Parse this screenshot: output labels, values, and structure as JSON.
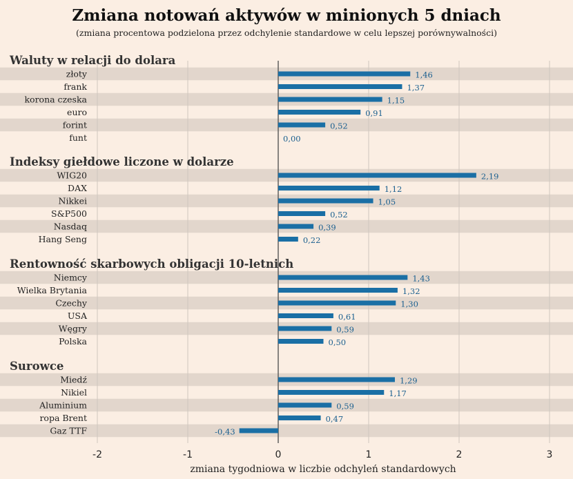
{
  "chart_data": {
    "type": "bar",
    "orientation": "horizontal",
    "title": "Zmiana notowań aktywów w minionych 5 dniach",
    "subtitle": "(zmiana procentowa podzielona przez odchylenie standardowe w celu lepszej porównywalności)",
    "xlabel": "zmiana tygodniowa w liczbie odchyleń standardowych",
    "xlim": [
      -2,
      3
    ],
    "xticks": [
      "-2",
      "-1",
      "0",
      "1",
      "2",
      "3"
    ],
    "grid": "vertical",
    "colors": {
      "bar": "#1a6fa5",
      "band": "#e2d6cc",
      "background": "#fbeee3",
      "value_text": "#1a5f8f"
    },
    "groups": [
      {
        "title": "Waluty w relacji do dolara",
        "items": [
          {
            "label": "złoty",
            "value": 1.46,
            "text": "1,46"
          },
          {
            "label": "frank",
            "value": 1.37,
            "text": "1,37"
          },
          {
            "label": "korona czeska",
            "value": 1.15,
            "text": "1,15"
          },
          {
            "label": "euro",
            "value": 0.91,
            "text": "0,91"
          },
          {
            "label": "forint",
            "value": 0.52,
            "text": "0,52"
          },
          {
            "label": "funt",
            "value": 0.0,
            "text": "0,00"
          }
        ]
      },
      {
        "title": "Indeksy giełdowe liczone w dolarze",
        "items": [
          {
            "label": "WIG20",
            "value": 2.19,
            "text": "2,19"
          },
          {
            "label": "DAX",
            "value": 1.12,
            "text": "1,12"
          },
          {
            "label": "Nikkei",
            "value": 1.05,
            "text": "1,05"
          },
          {
            "label": "S&P500",
            "value": 0.52,
            "text": "0,52"
          },
          {
            "label": "Nasdaq",
            "value": 0.39,
            "text": "0,39"
          },
          {
            "label": "Hang Seng",
            "value": 0.22,
            "text": "0,22"
          }
        ]
      },
      {
        "title": "Rentowność skarbowych obligacji 10-letnich",
        "items": [
          {
            "label": "Niemcy",
            "value": 1.43,
            "text": "1,43"
          },
          {
            "label": "Wielka Brytania",
            "value": 1.32,
            "text": "1,32"
          },
          {
            "label": "Czechy",
            "value": 1.3,
            "text": "1,30"
          },
          {
            "label": "USA",
            "value": 0.61,
            "text": "0,61"
          },
          {
            "label": "Węgry",
            "value": 0.59,
            "text": "0,59"
          },
          {
            "label": "Polska",
            "value": 0.5,
            "text": "0,50"
          }
        ]
      },
      {
        "title": "Surowce",
        "items": [
          {
            "label": "Miedź",
            "value": 1.29,
            "text": "1,29"
          },
          {
            "label": "Nikiel",
            "value": 1.17,
            "text": "1,17"
          },
          {
            "label": "Aluminium",
            "value": 0.59,
            "text": "0,59"
          },
          {
            "label": "ropa Brent",
            "value": 0.47,
            "text": "0,47"
          },
          {
            "label": "Gaz TTF",
            "value": -0.43,
            "text": "-0,43"
          }
        ]
      }
    ]
  }
}
